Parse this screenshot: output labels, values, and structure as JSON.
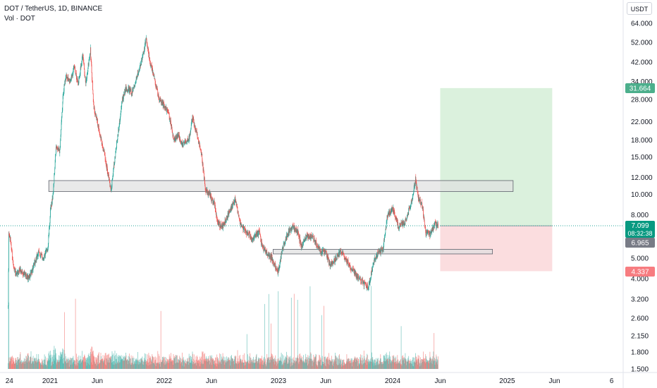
{
  "header": {
    "symbol_line": "DOT / TetherUS, 1D, BINANCE",
    "volume_line": "Vol · DOT",
    "currency": "USDT"
  },
  "price_tags": {
    "target": "31.664",
    "current_price": "7.099",
    "countdown": "08:32:38",
    "secondary": "6.965",
    "stop": "4.337"
  },
  "colors": {
    "up": "#26a69a",
    "down": "#ef5350",
    "profit_zone": "#d7efd9",
    "loss_zone": "#fbd9dc",
    "zone_box": "#e0e0e0",
    "current_tag": "#089981",
    "target_tag": "#4caf8c",
    "stop_tag": "#f77c80",
    "secondary_tag": "#787b86"
  },
  "chart_data": {
    "type": "candlestick",
    "y_scale": "log",
    "y_tick_labels": [
      "64.000",
      "52.000",
      "42.000",
      "34.000",
      "28.000",
      "22.000",
      "18.000",
      "15.000",
      "12.000",
      "10.000",
      "8.000",
      "6.000",
      "5.000",
      "4.000",
      "3.200",
      "2.600",
      "2.150",
      "1.800",
      "1.500"
    ],
    "x_tick_labels": [
      "24",
      "2021",
      "Jun",
      "2022",
      "Jun",
      "2023",
      "Jun",
      "2024",
      "Jun",
      "2025",
      "Jun",
      "6"
    ],
    "price_path": [
      [
        "2020-08-20",
        2.9
      ],
      [
        "2020-08-22",
        6.5
      ],
      [
        "2020-08-28",
        6.0
      ],
      [
        "2020-09-05",
        4.7
      ],
      [
        "2020-09-15",
        4.1
      ],
      [
        "2020-09-25",
        4.4
      ],
      [
        "2020-10-10",
        4.2
      ],
      [
        "2020-10-25",
        4.0
      ],
      [
        "2020-11-10",
        4.6
      ],
      [
        "2020-11-25",
        5.3
      ],
      [
        "2020-12-10",
        5.0
      ],
      [
        "2020-12-25",
        5.6
      ],
      [
        "2021-01-03",
        8.6
      ],
      [
        "2021-01-10",
        9.8
      ],
      [
        "2021-01-20",
        16.5
      ],
      [
        "2021-02-01",
        16.0
      ],
      [
        "2021-02-12",
        30.0
      ],
      [
        "2021-02-20",
        36.0
      ],
      [
        "2021-03-05",
        34.0
      ],
      [
        "2021-03-20",
        40.0
      ],
      [
        "2021-04-01",
        33.0
      ],
      [
        "2021-04-15",
        46.0
      ],
      [
        "2021-04-25",
        33.0
      ],
      [
        "2021-05-10",
        48.0
      ],
      [
        "2021-05-20",
        26.0
      ],
      [
        "2021-06-01",
        22.0
      ],
      [
        "2021-06-10",
        19.0
      ],
      [
        "2021-06-25",
        15.0
      ],
      [
        "2021-07-15",
        10.4
      ],
      [
        "2021-08-01",
        17.0
      ],
      [
        "2021-08-20",
        28.0
      ],
      [
        "2021-09-01",
        32.0
      ],
      [
        "2021-09-20",
        30.0
      ],
      [
        "2021-10-05",
        36.0
      ],
      [
        "2021-10-20",
        42.0
      ],
      [
        "2021-11-04",
        54.0
      ],
      [
        "2021-11-15",
        43.0
      ],
      [
        "2021-12-01",
        35.0
      ],
      [
        "2021-12-15",
        28.0
      ],
      [
        "2022-01-01",
        26.0
      ],
      [
        "2022-01-15",
        24.0
      ],
      [
        "2022-02-01",
        18.0
      ],
      [
        "2022-02-15",
        19.0
      ],
      [
        "2022-03-01",
        17.0
      ],
      [
        "2022-03-20",
        18.0
      ],
      [
        "2022-04-01",
        23.0
      ],
      [
        "2022-04-15",
        19.0
      ],
      [
        "2022-05-01",
        15.0
      ],
      [
        "2022-05-12",
        10.5
      ],
      [
        "2022-05-25",
        10.0
      ],
      [
        "2022-06-10",
        9.0
      ],
      [
        "2022-06-20",
        7.4
      ],
      [
        "2022-07-05",
        7.0
      ],
      [
        "2022-07-25",
        8.0
      ],
      [
        "2022-08-15",
        9.4
      ],
      [
        "2022-09-01",
        7.3
      ],
      [
        "2022-09-20",
        6.6
      ],
      [
        "2022-10-10",
        6.2
      ],
      [
        "2022-11-01",
        6.6
      ],
      [
        "2022-11-10",
        5.6
      ],
      [
        "2022-11-25",
        5.3
      ],
      [
        "2022-12-10",
        5.0
      ],
      [
        "2022-12-30",
        4.3
      ],
      [
        "2023-01-15",
        5.6
      ],
      [
        "2023-02-01",
        6.6
      ],
      [
        "2023-02-15",
        7.0
      ],
      [
        "2023-03-05",
        6.6
      ],
      [
        "2023-03-15",
        5.6
      ],
      [
        "2023-04-01",
        6.4
      ],
      [
        "2023-04-20",
        6.3
      ],
      [
        "2023-05-15",
        5.4
      ],
      [
        "2023-06-01",
        5.3
      ],
      [
        "2023-06-15",
        4.6
      ],
      [
        "2023-07-05",
        5.0
      ],
      [
        "2023-07-20",
        5.4
      ],
      [
        "2023-08-10",
        4.8
      ],
      [
        "2023-08-25",
        4.4
      ],
      [
        "2023-09-10",
        4.1
      ],
      [
        "2023-10-01",
        3.8
      ],
      [
        "2023-10-15",
        3.6
      ],
      [
        "2023-11-01",
        4.8
      ],
      [
        "2023-11-15",
        5.3
      ],
      [
        "2023-12-01",
        5.5
      ],
      [
        "2023-12-15",
        7.9
      ],
      [
        "2024-01-01",
        8.6
      ],
      [
        "2024-01-20",
        7.0
      ],
      [
        "2024-02-10",
        7.4
      ],
      [
        "2024-03-01",
        9.2
      ],
      [
        "2024-03-14",
        11.7
      ],
      [
        "2024-03-25",
        9.4
      ],
      [
        "2024-04-05",
        8.8
      ],
      [
        "2024-04-15",
        6.6
      ],
      [
        "2024-05-01",
        6.5
      ],
      [
        "2024-05-15",
        7.2
      ],
      [
        "2024-05-25",
        7.1
      ]
    ],
    "horizontal_zones": [
      {
        "from": "2020-12-28",
        "to": "2025-01-20",
        "low": 10.3,
        "high": 11.6
      },
      {
        "from": "2022-12-15",
        "to": "2024-11-15",
        "low": 5.23,
        "high": 5.5
      }
    ],
    "long_position": {
      "from": "2024-06-01",
      "to": "2025-05-25",
      "entry": 7.099,
      "target": 31.664,
      "stop": 4.337
    },
    "current_price": 7.099
  }
}
